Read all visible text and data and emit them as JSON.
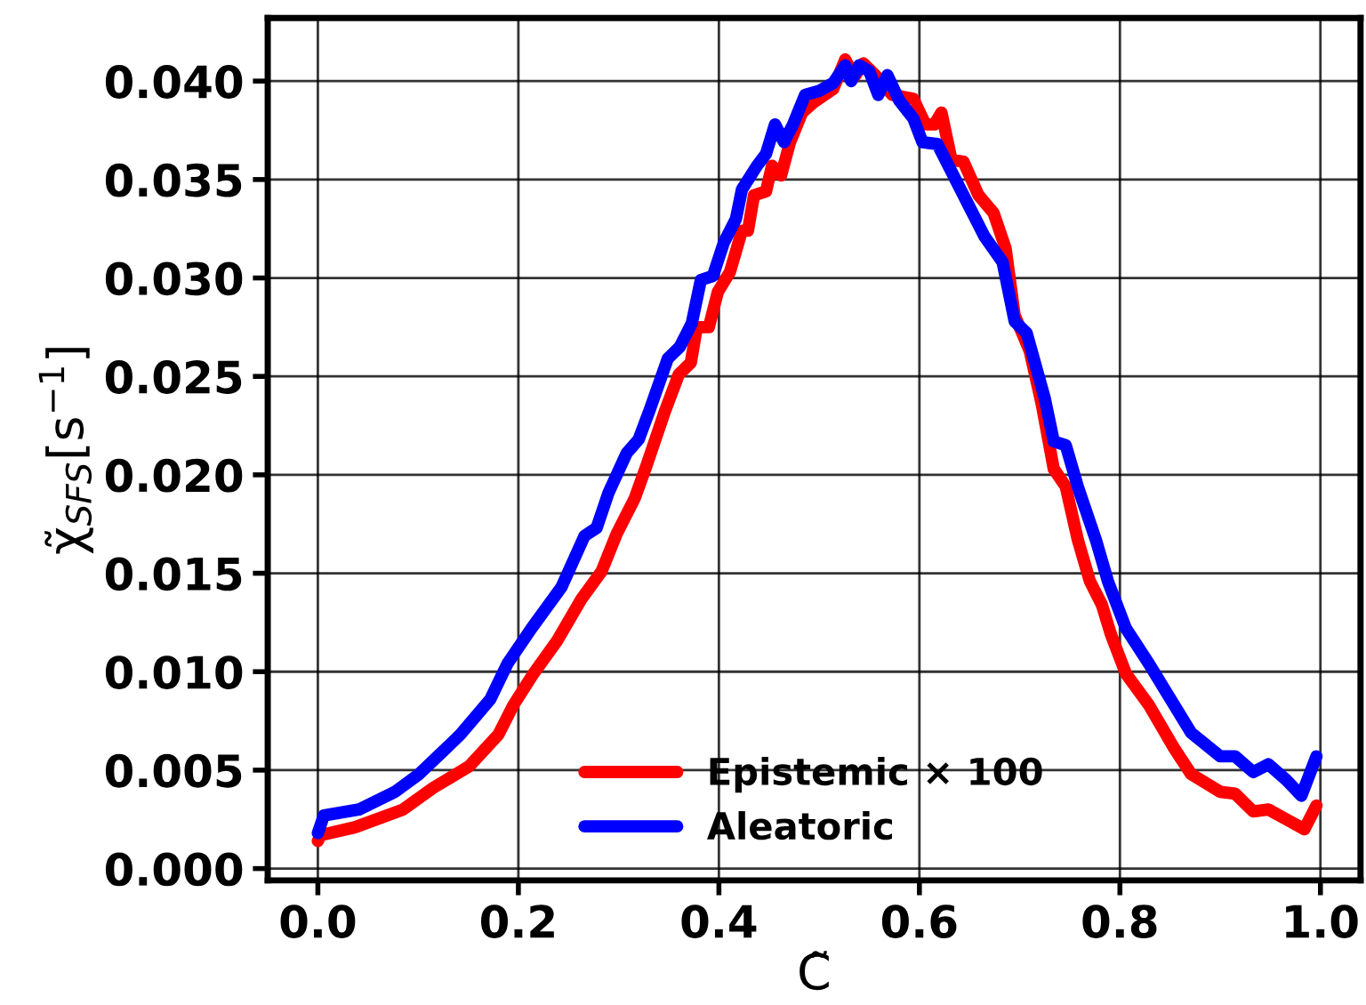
{
  "chart_data": {
    "type": "line",
    "xlabel": "C̃",
    "ylabel": "χ̃$_{SFS}$[s$^{−1}$]",
    "xlim": [
      -0.05,
      1.04
    ],
    "ylim": [
      -0.0006,
      0.0432
    ],
    "xticks": [
      {
        "value": 0,
        "label": "0.0"
      },
      0.2,
      0.4,
      0.6,
      0.8,
      {
        "value": 1,
        "label": "1.0"
      }
    ],
    "yticks": [
      {
        "value": 0,
        "label": "0.000"
      },
      0.005,
      {
        "value": 0.01,
        "label": "0.010"
      },
      0.015,
      {
        "value": 0.02,
        "label": "0.020"
      },
      0.025,
      {
        "value": 0.03,
        "label": "0.030"
      },
      0.035,
      {
        "value": 0.04,
        "label": "0.040"
      }
    ],
    "grid": true,
    "legend": "bottom",
    "marker": "none",
    "line_style": "solid",
    "series": [
      {
        "name": "Epistemic × 100",
        "color": "#ff0000",
        "x": [
          0.0,
          0.003,
          0.037,
          0.085,
          0.115,
          0.151,
          0.18,
          0.195,
          0.215,
          0.239,
          0.263,
          0.283,
          0.298,
          0.316,
          0.328,
          0.346,
          0.36,
          0.372,
          0.378,
          0.39,
          0.399,
          0.411,
          0.423,
          0.429,
          0.435,
          0.447,
          0.453,
          0.462,
          0.471,
          0.483,
          0.494,
          0.514,
          0.526,
          0.535,
          0.544,
          0.556,
          0.573,
          0.594,
          0.606,
          0.615,
          0.622,
          0.632,
          0.644,
          0.659,
          0.674,
          0.686,
          0.695,
          0.71,
          0.722,
          0.734,
          0.746,
          0.758,
          0.77,
          0.782,
          0.791,
          0.806,
          0.829,
          0.853,
          0.871,
          0.9,
          0.915,
          0.933,
          0.948,
          0.966,
          0.984,
          0.996
        ],
        "values": [
          0.0014,
          0.0017,
          0.0021,
          0.003,
          0.0041,
          0.0052,
          0.0068,
          0.0083,
          0.0099,
          0.0116,
          0.0137,
          0.0151,
          0.017,
          0.0188,
          0.0205,
          0.0232,
          0.0251,
          0.0257,
          0.0275,
          0.0275,
          0.0293,
          0.0303,
          0.0324,
          0.0324,
          0.0342,
          0.0344,
          0.0357,
          0.0352,
          0.0369,
          0.0384,
          0.0389,
          0.0396,
          0.0411,
          0.0402,
          0.0409,
          0.0403,
          0.0393,
          0.0391,
          0.0378,
          0.0378,
          0.0384,
          0.036,
          0.0359,
          0.0342,
          0.0333,
          0.0315,
          0.0281,
          0.0263,
          0.0236,
          0.0203,
          0.0194,
          0.0167,
          0.0146,
          0.0134,
          0.0119,
          0.0099,
          0.0083,
          0.0062,
          0.0048,
          0.0039,
          0.0038,
          0.0029,
          0.003,
          0.0025,
          0.002,
          0.0032
        ]
      },
      {
        "name": "Aleatoric",
        "color": "#0000ff",
        "x": [
          0.0,
          0.006,
          0.041,
          0.077,
          0.101,
          0.142,
          0.172,
          0.189,
          0.213,
          0.243,
          0.266,
          0.278,
          0.29,
          0.308,
          0.32,
          0.331,
          0.349,
          0.361,
          0.373,
          0.382,
          0.394,
          0.405,
          0.417,
          0.423,
          0.438,
          0.447,
          0.456,
          0.465,
          0.474,
          0.486,
          0.5,
          0.514,
          0.526,
          0.532,
          0.54,
          0.55,
          0.559,
          0.568,
          0.58,
          0.594,
          0.603,
          0.618,
          0.632,
          0.653,
          0.665,
          0.683,
          0.695,
          0.707,
          0.725,
          0.734,
          0.746,
          0.758,
          0.776,
          0.788,
          0.806,
          0.829,
          0.847,
          0.871,
          0.9,
          0.915,
          0.933,
          0.948,
          0.966,
          0.981,
          0.996
        ],
        "values": [
          0.0018,
          0.0027,
          0.003,
          0.0039,
          0.0048,
          0.0068,
          0.0086,
          0.0104,
          0.0122,
          0.0143,
          0.0169,
          0.0173,
          0.0191,
          0.0211,
          0.0218,
          0.0233,
          0.0259,
          0.0265,
          0.0277,
          0.0299,
          0.0301,
          0.0318,
          0.033,
          0.0345,
          0.0357,
          0.0363,
          0.0378,
          0.0369,
          0.0378,
          0.0393,
          0.0395,
          0.0399,
          0.0408,
          0.04,
          0.0408,
          0.0405,
          0.0393,
          0.0403,
          0.039,
          0.0381,
          0.0369,
          0.0368,
          0.0354,
          0.0333,
          0.0321,
          0.0308,
          0.0278,
          0.0272,
          0.0239,
          0.0217,
          0.0215,
          0.0194,
          0.0167,
          0.0146,
          0.0122,
          0.0104,
          0.0089,
          0.0069,
          0.0057,
          0.0057,
          0.0049,
          0.0053,
          0.0045,
          0.0037,
          0.0057
        ]
      }
    ]
  }
}
